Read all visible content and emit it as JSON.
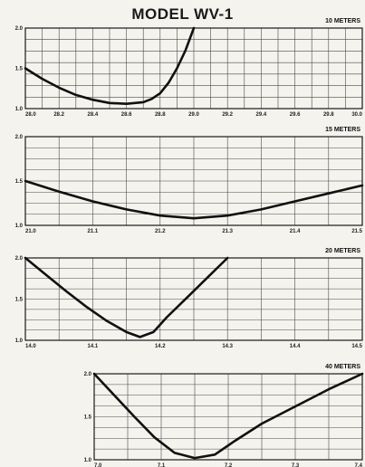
{
  "title": "MODEL WV-1",
  "chart_data": [
    {
      "type": "line",
      "band": "10 METERS",
      "x_ticks": [
        "28.0",
        "28.2",
        "28.4",
        "28.6",
        "28.8",
        "29.0",
        "29.2",
        "29.4",
        "29.6",
        "29.8",
        "30.0"
      ],
      "y_ticks": [
        "1.0",
        "1.5",
        "2.0"
      ],
      "xlim": [
        28.0,
        30.0
      ],
      "ylim": [
        1.0,
        2.0
      ],
      "grid": true,
      "x": [
        28.0,
        28.1,
        28.2,
        28.3,
        28.4,
        28.5,
        28.6,
        28.7,
        28.75,
        28.8,
        28.85,
        28.9,
        28.95,
        29.0
      ],
      "y": [
        1.5,
        1.37,
        1.26,
        1.17,
        1.11,
        1.07,
        1.06,
        1.08,
        1.12,
        1.19,
        1.32,
        1.5,
        1.72,
        2.0
      ]
    },
    {
      "type": "line",
      "band": "15 METERS",
      "x_ticks": [
        "21.0",
        "21.1",
        "21.2",
        "21.3",
        "21.4",
        "21.5"
      ],
      "y_ticks": [
        "1.0",
        "1.5",
        "2.0"
      ],
      "xlim": [
        21.0,
        21.5
      ],
      "ylim": [
        1.0,
        2.0
      ],
      "grid": true,
      "x": [
        21.0,
        21.05,
        21.1,
        21.15,
        21.2,
        21.25,
        21.3,
        21.35,
        21.4,
        21.45,
        21.5
      ],
      "y": [
        1.5,
        1.38,
        1.27,
        1.18,
        1.11,
        1.08,
        1.11,
        1.18,
        1.27,
        1.36,
        1.45
      ]
    },
    {
      "type": "line",
      "band": "20 METERS",
      "x_ticks": [
        "14.0",
        "14.1",
        "14.2",
        "14.3",
        "14.4",
        "14.5"
      ],
      "y_ticks": [
        "1.0",
        "1.5",
        "2.0"
      ],
      "xlim": [
        14.0,
        14.5
      ],
      "ylim": [
        1.0,
        2.0
      ],
      "grid": true,
      "x": [
        14.0,
        14.03,
        14.06,
        14.09,
        14.12,
        14.15,
        14.17,
        14.19,
        14.21,
        14.24,
        14.27,
        14.3
      ],
      "y": [
        2.0,
        1.8,
        1.6,
        1.41,
        1.24,
        1.1,
        1.04,
        1.1,
        1.28,
        1.52,
        1.76,
        2.0
      ]
    },
    {
      "type": "line",
      "band": "40 METERS",
      "x_ticks": [
        "7.0",
        "7.1",
        "7.2",
        "7.3",
        "7.4"
      ],
      "y_ticks": [
        "1.0",
        "1.5",
        "2.0"
      ],
      "xlim": [
        7.0,
        7.4
      ],
      "ylim": [
        1.0,
        2.0
      ],
      "grid": true,
      "x": [
        7.0,
        7.03,
        7.06,
        7.09,
        7.12,
        7.15,
        7.18,
        7.21,
        7.25,
        7.3,
        7.35,
        7.4
      ],
      "y": [
        2.0,
        1.75,
        1.5,
        1.26,
        1.08,
        1.02,
        1.06,
        1.22,
        1.42,
        1.62,
        1.82,
        2.0
      ]
    }
  ]
}
